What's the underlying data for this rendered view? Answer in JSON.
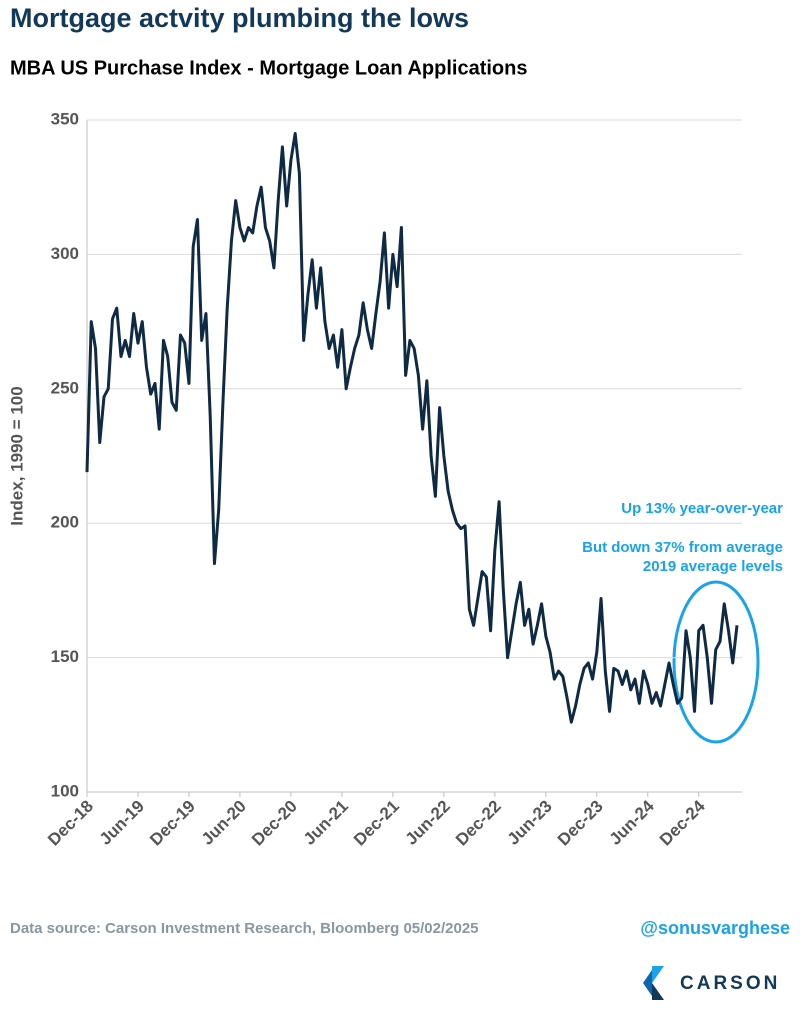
{
  "chart_data": {
    "type": "line",
    "title": "Mortgage actvity plumbing the lows",
    "subtitle": "MBA US Purchase Index - Mortgage Loan Applications",
    "y_label": "Index, 1990 = 100",
    "annotations": [
      "Up 13% year-over-year",
      "But down 37% from average",
      "2019 average levels"
    ],
    "source": "Data source: Carson Investment Research, Bloomberg   05/02/2025",
    "handle": "@sonusvarghese",
    "logo": "CARSON",
    "color": "#0f2a44",
    "grid": true,
    "ylim": [
      100,
      350
    ],
    "yticks": [
      100,
      150,
      200,
      250,
      300,
      350
    ],
    "categories": [
      "Dec-18",
      null,
      null,
      null,
      null,
      null,
      null,
      null,
      null,
      null,
      null,
      null,
      "Jun-19",
      null,
      null,
      null,
      null,
      null,
      null,
      null,
      null,
      null,
      null,
      null,
      "Dec-19",
      null,
      null,
      null,
      null,
      null,
      null,
      null,
      null,
      null,
      null,
      null,
      "Jun-20",
      null,
      null,
      null,
      null,
      null,
      null,
      null,
      null,
      null,
      null,
      null,
      "Dec-20",
      null,
      null,
      null,
      null,
      null,
      null,
      null,
      null,
      null,
      null,
      null,
      "Jun-21",
      null,
      null,
      null,
      null,
      null,
      null,
      null,
      null,
      null,
      null,
      null,
      "Dec-21",
      null,
      null,
      null,
      null,
      null,
      null,
      null,
      null,
      null,
      null,
      null,
      "Jun-22",
      null,
      null,
      null,
      null,
      null,
      null,
      null,
      null,
      null,
      null,
      null,
      "Dec-22",
      null,
      null,
      null,
      null,
      null,
      null,
      null,
      null,
      null,
      null,
      null,
      "Jun-23",
      null,
      null,
      null,
      null,
      null,
      null,
      null,
      null,
      null,
      null,
      null,
      "Dec-23",
      null,
      null,
      null,
      null,
      null,
      null,
      null,
      null,
      null,
      null,
      null,
      "Jun-24",
      null,
      null,
      null,
      null,
      null,
      null,
      null,
      null,
      null,
      null,
      null,
      "Dec-24",
      null,
      null,
      null,
      null,
      null,
      null,
      null,
      null,
      null
    ],
    "values": [
      219,
      275,
      265,
      230,
      247,
      250,
      276,
      280,
      262,
      268,
      262,
      278,
      267,
      275,
      258,
      248,
      252,
      235,
      268,
      262,
      245,
      242,
      270,
      267,
      252,
      303,
      313,
      268,
      278,
      240,
      185,
      205,
      245,
      280,
      305,
      320,
      310,
      305,
      310,
      308,
      318,
      325,
      310,
      305,
      295,
      320,
      340,
      318,
      335,
      345,
      330,
      268,
      285,
      298,
      280,
      295,
      275,
      265,
      270,
      258,
      272,
      250,
      258,
      265,
      270,
      282,
      272,
      265,
      278,
      290,
      308,
      280,
      300,
      288,
      310,
      255,
      268,
      265,
      255,
      235,
      253,
      225,
      210,
      243,
      225,
      212,
      205,
      200,
      198,
      199,
      168,
      162,
      172,
      182,
      180,
      160,
      190,
      208,
      175,
      150,
      160,
      170,
      178,
      162,
      168,
      155,
      162,
      170,
      158,
      152,
      142,
      145,
      143,
      135,
      126,
      132,
      140,
      146,
      148,
      142,
      152,
      172,
      145,
      130,
      146,
      145,
      140,
      145,
      138,
      142,
      133,
      145,
      140,
      133,
      137,
      132,
      140,
      148,
      140,
      133,
      135,
      160,
      150,
      130,
      160,
      162,
      150,
      133,
      153,
      156,
      170,
      160,
      148,
      162
    ]
  }
}
